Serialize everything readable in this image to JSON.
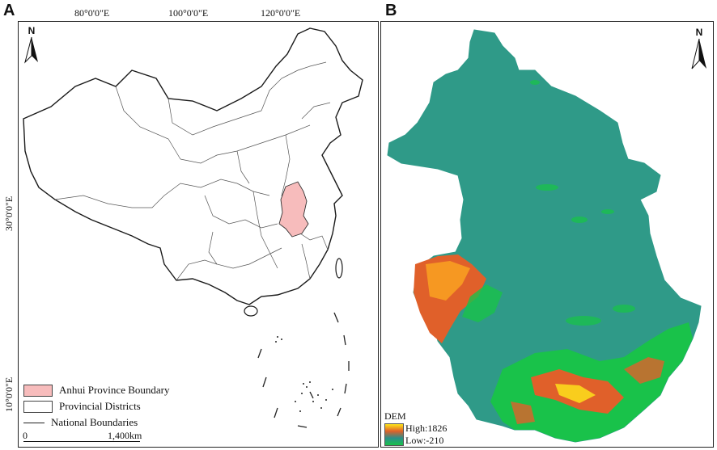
{
  "panel_a": {
    "letter": "A",
    "lon_labels": [
      "80°0'0\"E",
      "100°0'0\"E",
      "120°0'0\"E"
    ],
    "lat_labels": [
      "30°0'0\"E",
      "10°0'0\"E"
    ],
    "north_label": "N",
    "legend": [
      {
        "label": "Anhui Province Boundary",
        "kind": "fill",
        "color": "#f7bcbc"
      },
      {
        "label": "Provincial Districts",
        "kind": "box",
        "color": "#ffffff"
      },
      {
        "label": "National Boundaries",
        "kind": "line",
        "color": "#222222"
      }
    ],
    "scale": {
      "start": "0",
      "end": "1,400km"
    }
  },
  "panel_b": {
    "letter": "B",
    "north_label": "N",
    "dem": {
      "title": "DEM",
      "high": "High:1826",
      "low": "Low:-210",
      "colors": [
        "#ffe81a",
        "#e0602a",
        "#2a8f8a",
        "#19c24a"
      ]
    },
    "land_color": "#2f9a88"
  }
}
